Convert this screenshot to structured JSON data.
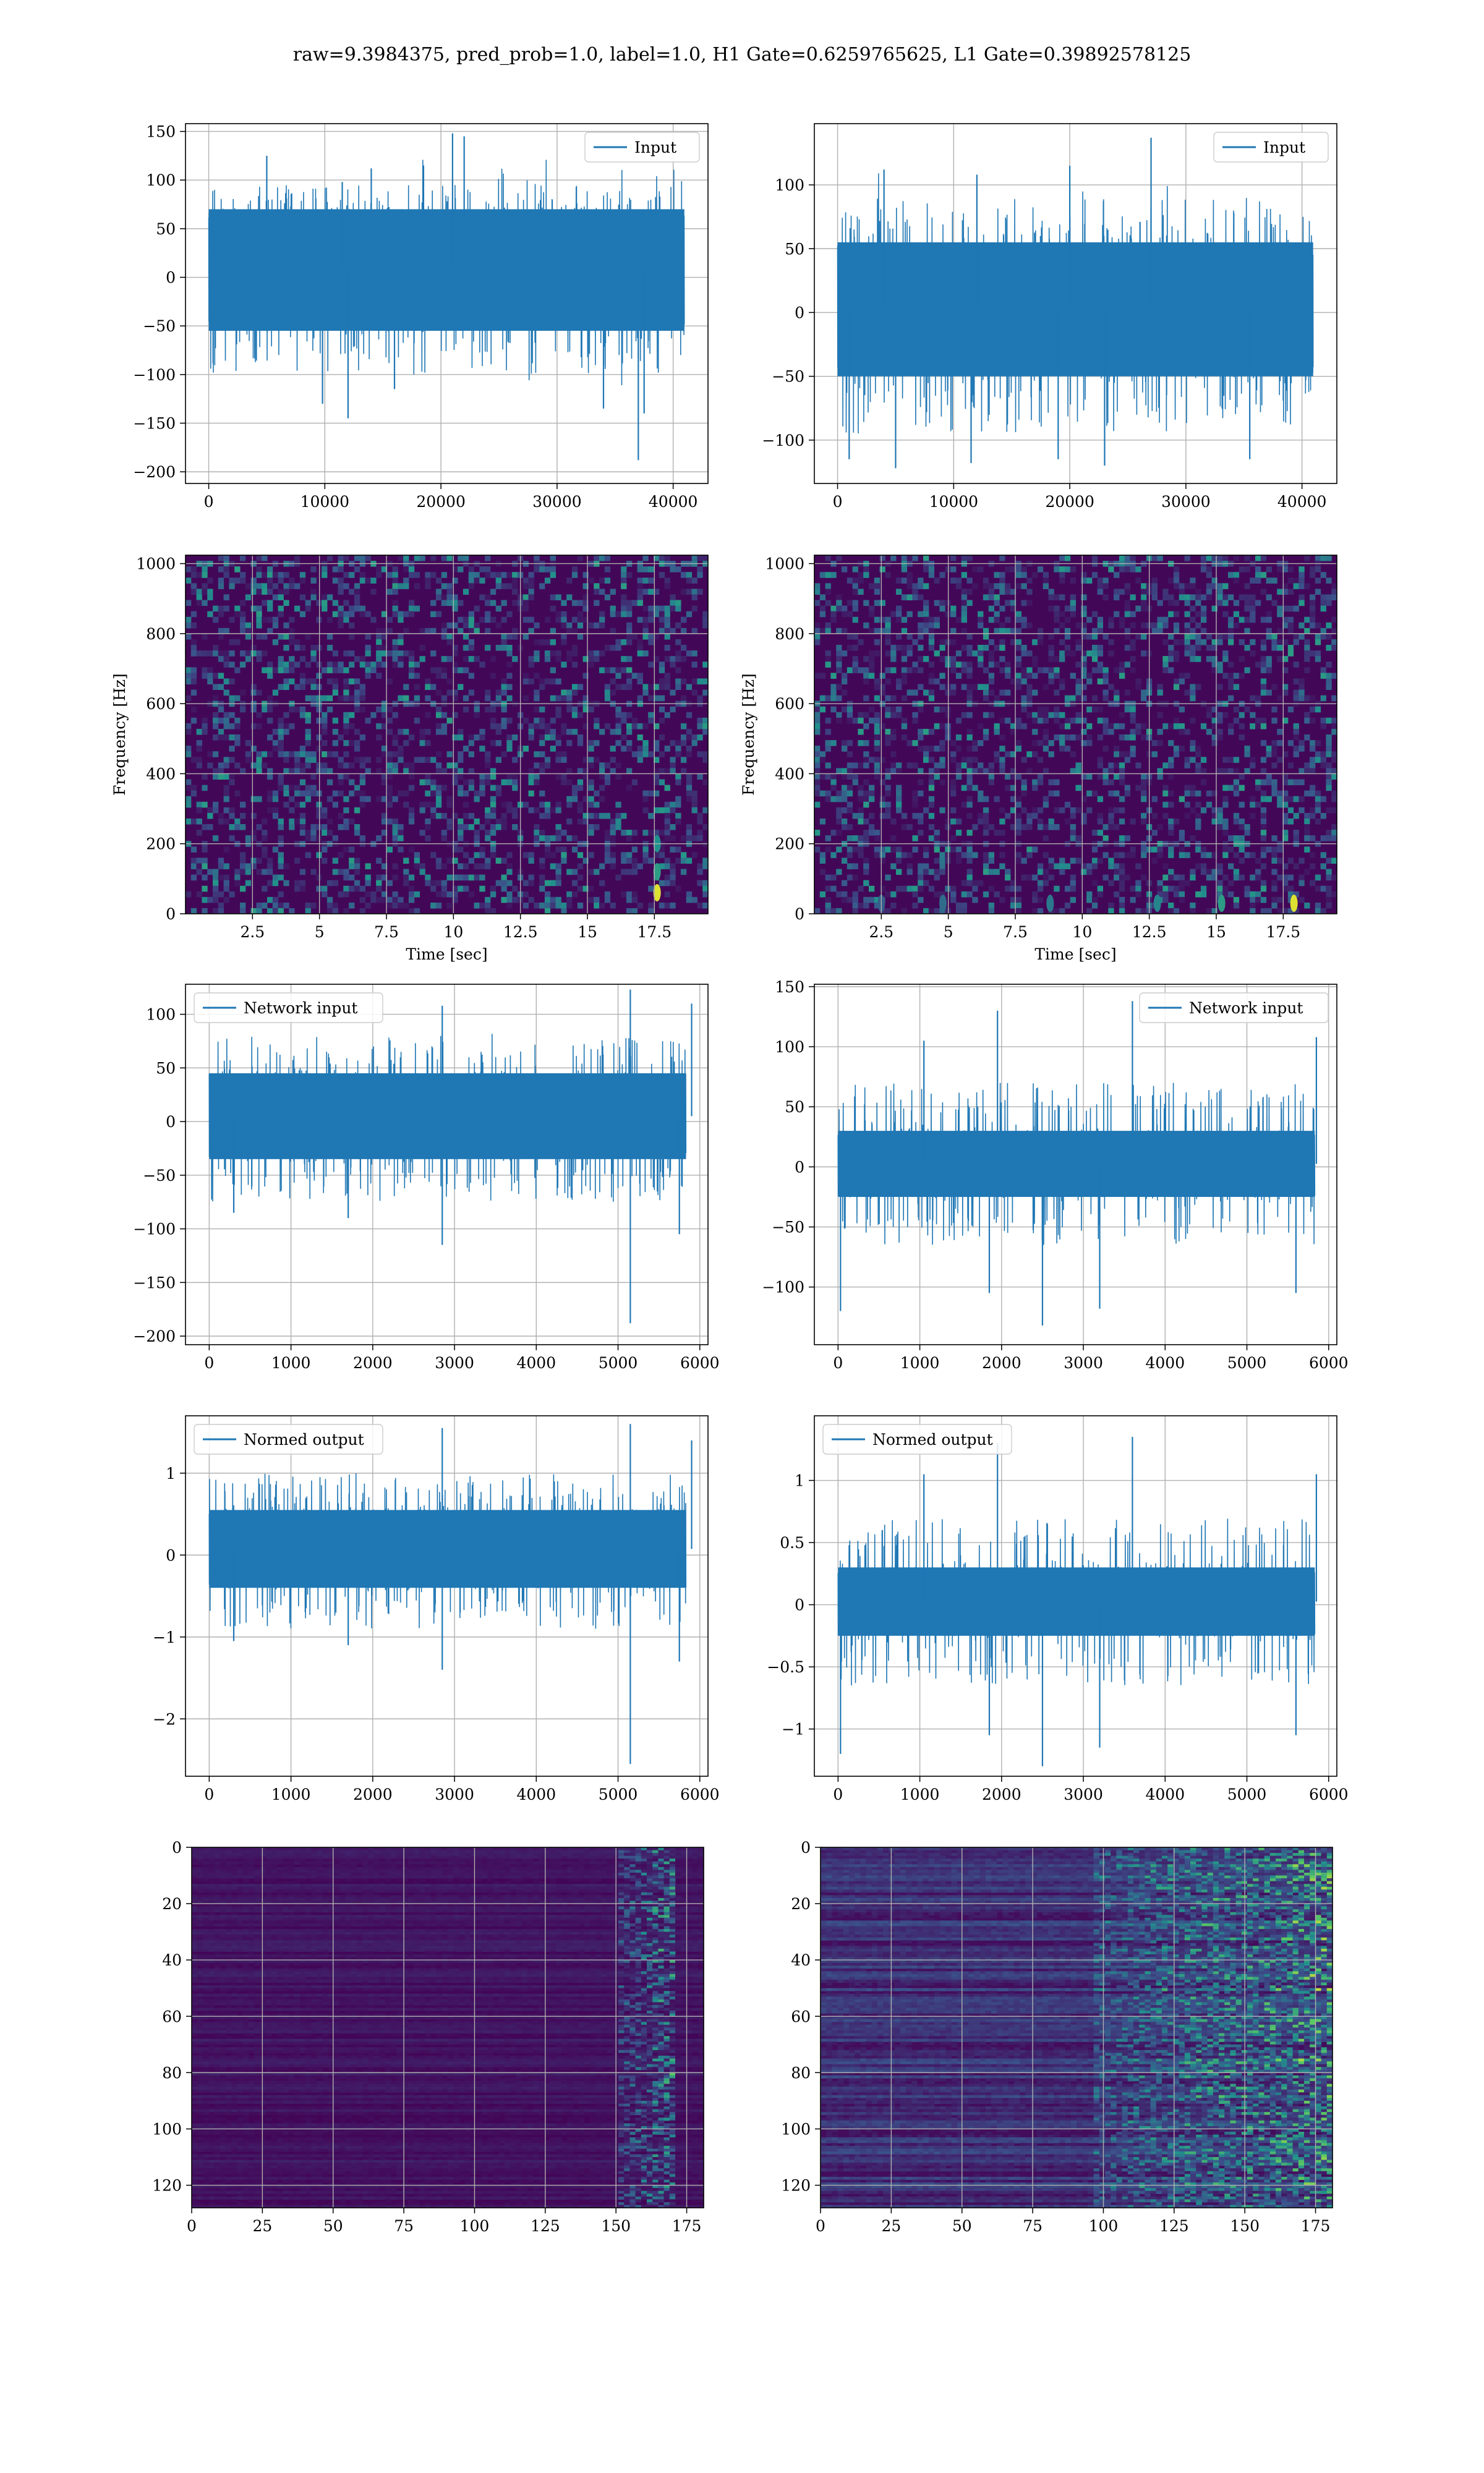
{
  "figure": {
    "title": "raw=9.3984375, pred_prob=1.0, label=1.0, H1 Gate=0.6259765625, L1 Gate=0.39892578125",
    "background": "#ffffff",
    "line_color": "#1f77b4",
    "grid_color": "#b0b0b0"
  },
  "chart_data": [
    {
      "id": "input-h1",
      "type": "line",
      "legend": "Input",
      "legend_loc": "upper right",
      "xlim": [
        -2000,
        43000
      ],
      "ylim": [
        -212,
        158
      ],
      "xticks": [
        0,
        10000,
        20000,
        30000,
        40000
      ],
      "yticks": [
        150,
        100,
        50,
        0,
        -50,
        -100,
        -150,
        -200
      ],
      "series": [
        {
          "name": "Input",
          "n_samples": 40960,
          "x_range": [
            0,
            40960
          ],
          "core_band": [
            -55,
            70
          ],
          "envelope": [
            -100,
            95
          ],
          "spikes": [
            [
              5000,
              125
            ],
            [
              11500,
              98
            ],
            [
              14000,
              112
            ],
            [
              18500,
              115
            ],
            [
              21000,
              148
            ],
            [
              22000,
              145
            ],
            [
              9800,
              -130
            ],
            [
              12000,
              -145
            ],
            [
              16000,
              -115
            ],
            [
              34000,
              -135
            ],
            [
              37000,
              -188
            ],
            [
              37500,
              -140
            ]
          ]
        }
      ]
    },
    {
      "id": "input-l1",
      "type": "line",
      "legend": "Input",
      "legend_loc": "upper right",
      "xlim": [
        -2000,
        43000
      ],
      "ylim": [
        -134,
        148
      ],
      "xticks": [
        0,
        10000,
        20000,
        30000,
        40000
      ],
      "yticks": [
        100,
        50,
        0,
        -50,
        -100
      ],
      "series": [
        {
          "name": "Input",
          "n_samples": 40960,
          "x_range": [
            0,
            40960
          ],
          "core_band": [
            -50,
            55
          ],
          "envelope": [
            -95,
            90
          ],
          "spikes": [
            [
              4000,
              112
            ],
            [
              12000,
              108
            ],
            [
              20000,
              115
            ],
            [
              27000,
              137
            ],
            [
              1000,
              -115
            ],
            [
              5000,
              -122
            ],
            [
              11500,
              -118
            ],
            [
              19000,
              -115
            ],
            [
              23000,
              -120
            ],
            [
              35500,
              -115
            ]
          ]
        }
      ]
    },
    {
      "id": "spec-h1",
      "type": "heatmap",
      "xlabel": "Time [sec]",
      "ylabel": "Frequency [Hz]",
      "xlim": [
        0,
        19.5
      ],
      "ylim": [
        0,
        1024
      ],
      "xticks": [
        2.5,
        5.0,
        7.5,
        10.0,
        12.5,
        15.0,
        17.5
      ],
      "yticks": [
        0,
        200,
        400,
        600,
        800,
        1000
      ],
      "colormap": "viridis",
      "hotspots": [
        [
          17.6,
          60,
          0.95
        ],
        [
          17.6,
          120,
          0.55
        ],
        [
          17.6,
          200,
          0.5
        ]
      ]
    },
    {
      "id": "spec-l1",
      "type": "heatmap",
      "xlabel": "Time [sec]",
      "ylabel": "Frequency [Hz]",
      "xlim": [
        0,
        19.5
      ],
      "ylim": [
        0,
        1024
      ],
      "xticks": [
        2.5,
        5.0,
        7.5,
        10.0,
        12.5,
        15.0,
        17.5
      ],
      "yticks": [
        0,
        200,
        400,
        600,
        800,
        1000
      ],
      "colormap": "viridis",
      "hotspots": [
        [
          17.9,
          30,
          0.95
        ],
        [
          15.2,
          30,
          0.55
        ],
        [
          12.8,
          30,
          0.45
        ],
        [
          8.8,
          30,
          0.4
        ],
        [
          4.8,
          30,
          0.35
        ],
        [
          2.5,
          30,
          0.3
        ]
      ]
    },
    {
      "id": "net-input-h1",
      "type": "line",
      "legend": "Network input",
      "legend_loc": "upper left",
      "xlim": [
        -290,
        6100
      ],
      "ylim": [
        -208,
        128
      ],
      "xticks": [
        0,
        1000,
        2000,
        3000,
        4000,
        5000,
        6000
      ],
      "yticks": [
        100,
        50,
        0,
        -50,
        -100,
        -150,
        -200
      ],
      "series": [
        {
          "name": "Network input",
          "n_samples": 5830,
          "x_range": [
            0,
            5830
          ],
          "core_band": [
            -35,
            45
          ],
          "envelope": [
            -75,
            80
          ],
          "spikes": [
            [
              2850,
              108
            ],
            [
              5150,
              123
            ],
            [
              5900,
              110
            ],
            [
              300,
              -85
            ],
            [
              1700,
              -90
            ],
            [
              2850,
              -115
            ],
            [
              5150,
              -188
            ],
            [
              5750,
              -105
            ]
          ]
        }
      ]
    },
    {
      "id": "net-input-l1",
      "type": "line",
      "legend": "Network input",
      "legend_loc": "upper right",
      "xlim": [
        -290,
        6100
      ],
      "ylim": [
        -148,
        152
      ],
      "xticks": [
        0,
        1000,
        2000,
        3000,
        4000,
        5000,
        6000
      ],
      "yticks": [
        150,
        100,
        50,
        0,
        -50,
        -100
      ],
      "series": [
        {
          "name": "Network input",
          "n_samples": 5830,
          "x_range": [
            0,
            5830
          ],
          "core_band": [
            -25,
            30
          ],
          "envelope": [
            -65,
            70
          ],
          "spikes": [
            [
              1050,
              105
            ],
            [
              1950,
              130
            ],
            [
              3600,
              138
            ],
            [
              5850,
              108
            ],
            [
              30,
              -120
            ],
            [
              1850,
              -105
            ],
            [
              2500,
              -132
            ],
            [
              3200,
              -118
            ],
            [
              5600,
              -105
            ]
          ]
        }
      ]
    },
    {
      "id": "normed-h1",
      "type": "line",
      "legend": "Normed output",
      "legend_loc": "upper left",
      "xlim": [
        -290,
        6100
      ],
      "ylim": [
        -2.7,
        1.7
      ],
      "xticks": [
        0,
        1000,
        2000,
        3000,
        4000,
        5000,
        6000
      ],
      "yticks": [
        1,
        0,
        -1,
        -2
      ],
      "series": [
        {
          "name": "Normed output",
          "n_samples": 5830,
          "x_range": [
            0,
            5830
          ],
          "core_band": [
            -0.4,
            0.55
          ],
          "envelope": [
            -0.9,
            1.0
          ],
          "spikes": [
            [
              2850,
              1.55
            ],
            [
              5150,
              1.6
            ],
            [
              5900,
              1.4
            ],
            [
              300,
              -1.05
            ],
            [
              1700,
              -1.1
            ],
            [
              2850,
              -1.4
            ],
            [
              5150,
              -2.55
            ],
            [
              5750,
              -1.3
            ]
          ]
        }
      ]
    },
    {
      "id": "normed-l1",
      "type": "line",
      "legend": "Normed output",
      "legend_loc": "upper left",
      "xlim": [
        -290,
        6100
      ],
      "ylim": [
        -1.38,
        1.52
      ],
      "xticks": [
        0,
        1000,
        2000,
        3000,
        4000,
        5000,
        6000
      ],
      "yticks": [
        1.0,
        0.5,
        0.0,
        -0.5,
        -1.0
      ],
      "series": [
        {
          "name": "Normed output",
          "n_samples": 5830,
          "x_range": [
            0,
            5830
          ],
          "core_band": [
            -0.25,
            0.3
          ],
          "envelope": [
            -0.65,
            0.7
          ],
          "spikes": [
            [
              1050,
              1.05
            ],
            [
              1950,
              1.3
            ],
            [
              3600,
              1.35
            ],
            [
              5850,
              1.05
            ],
            [
              30,
              -1.2
            ],
            [
              1850,
              -1.05
            ],
            [
              2500,
              -1.3
            ],
            [
              3200,
              -1.15
            ],
            [
              5600,
              -1.05
            ]
          ]
        }
      ]
    },
    {
      "id": "feature-h1",
      "type": "heatmap",
      "xlim": [
        0,
        181
      ],
      "ylim": [
        128,
        0
      ],
      "xticks": [
        0,
        25,
        50,
        75,
        100,
        125,
        150,
        175
      ],
      "yticks": [
        0,
        20,
        40,
        60,
        80,
        100,
        120
      ],
      "colormap": "viridis",
      "activity": {
        "base": 0.05,
        "hot_column_range": [
          150,
          170
        ],
        "hot_level": 0.65
      }
    },
    {
      "id": "feature-l1",
      "type": "heatmap",
      "xlim": [
        0,
        181
      ],
      "ylim": [
        128,
        0
      ],
      "xticks": [
        0,
        25,
        50,
        75,
        100,
        125,
        150,
        175
      ],
      "yticks": [
        0,
        20,
        40,
        60,
        80,
        100,
        120
      ],
      "colormap": "viridis",
      "activity": {
        "base": 0.12,
        "hot_column_range": [
          95,
          181
        ],
        "hot_level": 0.7
      }
    }
  ]
}
